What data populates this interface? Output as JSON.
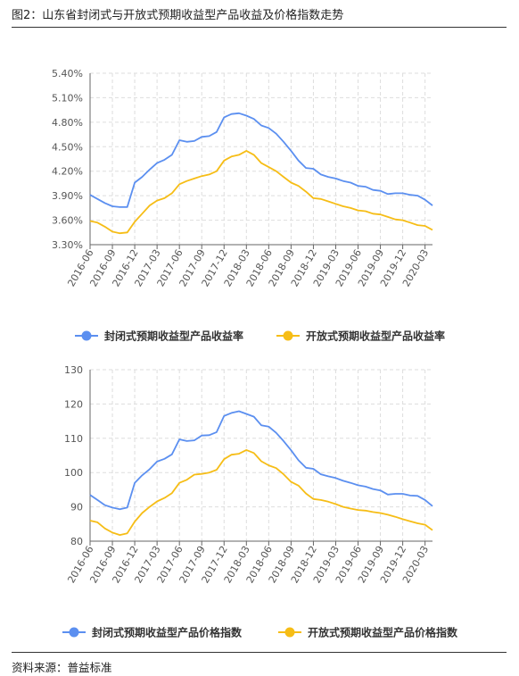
{
  "figure": {
    "title": "图2：山东省封闭式与开放式预期收益型产品收益及价格指数走势",
    "source": "资料来源：普益标准"
  },
  "colors": {
    "closed": "#5b8ff0",
    "open": "#f6bd16",
    "grid": "#dddddd",
    "axis": "#666666"
  },
  "chart_data": [
    {
      "type": "line",
      "x_ticks": [
        "2016-06",
        "2016-09",
        "2016-12",
        "2017-03",
        "2017-06",
        "2017-09",
        "2017-12",
        "2018-03",
        "2018-06",
        "2018-09",
        "2018-12",
        "2019-03",
        "2019-06",
        "2019-09",
        "2019-12",
        "2020-03"
      ],
      "x": [
        "2016-06",
        "2016-07",
        "2016-08",
        "2016-09",
        "2016-10",
        "2016-11",
        "2016-12",
        "2017-01",
        "2017-02",
        "2017-03",
        "2017-04",
        "2017-05",
        "2017-06",
        "2017-07",
        "2017-08",
        "2017-09",
        "2017-10",
        "2017-11",
        "2017-12",
        "2018-01",
        "2018-02",
        "2018-03",
        "2018-04",
        "2018-05",
        "2018-06",
        "2018-07",
        "2018-08",
        "2018-09",
        "2018-10",
        "2018-11",
        "2018-12",
        "2019-01",
        "2019-02",
        "2019-03",
        "2019-04",
        "2019-05",
        "2019-06",
        "2019-07",
        "2019-08",
        "2019-09",
        "2019-10",
        "2019-11",
        "2019-12",
        "2020-01",
        "2020-02",
        "2020-03",
        "2020-04"
      ],
      "y_ticks": [
        "3.30%",
        "3.60%",
        "3.90%",
        "4.20%",
        "4.50%",
        "4.80%",
        "5.10%",
        "5.40%"
      ],
      "ylim": [
        3.3,
        5.4
      ],
      "series": [
        {
          "name": "封闭式预期收益型产品收益率",
          "color_key": "closed",
          "values": [
            3.91,
            3.86,
            3.81,
            3.77,
            3.76,
            3.76,
            4.06,
            4.13,
            4.22,
            4.3,
            4.34,
            4.4,
            4.58,
            4.56,
            4.57,
            4.62,
            4.63,
            4.68,
            4.86,
            4.9,
            4.91,
            4.88,
            4.84,
            4.76,
            4.73,
            4.66,
            4.56,
            4.45,
            4.33,
            4.24,
            4.23,
            4.16,
            4.13,
            4.11,
            4.08,
            4.06,
            4.02,
            4.01,
            3.97,
            3.96,
            3.92,
            3.93,
            3.93,
            3.91,
            3.9,
            3.85,
            3.78
          ]
        },
        {
          "name": "开放式预期收益型产品收益率",
          "color_key": "open",
          "values": [
            3.59,
            3.57,
            3.52,
            3.46,
            3.44,
            3.45,
            3.58,
            3.68,
            3.78,
            3.84,
            3.87,
            3.93,
            4.04,
            4.08,
            4.11,
            4.14,
            4.16,
            4.2,
            4.33,
            4.38,
            4.4,
            4.45,
            4.4,
            4.3,
            4.25,
            4.2,
            4.13,
            4.06,
            4.02,
            3.95,
            3.87,
            3.86,
            3.83,
            3.8,
            3.77,
            3.75,
            3.72,
            3.71,
            3.68,
            3.67,
            3.64,
            3.61,
            3.6,
            3.57,
            3.54,
            3.53,
            3.48
          ]
        }
      ]
    },
    {
      "type": "line",
      "x_ticks": [
        "2016-06",
        "2016-09",
        "2016-12",
        "2017-03",
        "2017-06",
        "2017-09",
        "2017-12",
        "2018-03",
        "2018-06",
        "2018-09",
        "2018-12",
        "2019-03",
        "2019-06",
        "2019-09",
        "2019-12",
        "2020-03"
      ],
      "x": [
        "2016-06",
        "2016-07",
        "2016-08",
        "2016-09",
        "2016-10",
        "2016-11",
        "2016-12",
        "2017-01",
        "2017-02",
        "2017-03",
        "2017-04",
        "2017-05",
        "2017-06",
        "2017-07",
        "2017-08",
        "2017-09",
        "2017-10",
        "2017-11",
        "2017-12",
        "2018-01",
        "2018-02",
        "2018-03",
        "2018-04",
        "2018-05",
        "2018-06",
        "2018-07",
        "2018-08",
        "2018-09",
        "2018-10",
        "2018-11",
        "2018-12",
        "2019-01",
        "2019-02",
        "2019-03",
        "2019-04",
        "2019-05",
        "2019-06",
        "2019-07",
        "2019-08",
        "2019-09",
        "2019-10",
        "2019-11",
        "2019-12",
        "2020-01",
        "2020-02",
        "2020-03",
        "2020-04"
      ],
      "y_ticks": [
        "80",
        "90",
        "100",
        "110",
        "120",
        "130"
      ],
      "ylim": [
        80,
        130
      ],
      "series": [
        {
          "name": "封闭式预期收益型产品价格指数",
          "color_key": "closed",
          "values": [
            93.5,
            92.0,
            90.5,
            89.8,
            89.3,
            89.8,
            97.0,
            99.2,
            101.0,
            103.2,
            104.0,
            105.3,
            109.7,
            109.2,
            109.4,
            110.8,
            110.9,
            111.8,
            116.5,
            117.4,
            117.9,
            117.1,
            116.3,
            113.8,
            113.4,
            111.6,
            109.2,
            106.5,
            103.6,
            101.4,
            101.1,
            99.5,
            98.9,
            98.4,
            97.6,
            97.0,
            96.3,
            95.9,
            95.2,
            94.8,
            93.6,
            93.8,
            93.8,
            93.3,
            93.2,
            92.0,
            90.2
          ]
        },
        {
          "name": "开放式预期收益型产品价格指数",
          "color_key": "open",
          "values": [
            86.0,
            85.5,
            83.7,
            82.5,
            81.8,
            82.3,
            85.7,
            88.2,
            90.0,
            91.6,
            92.6,
            94.0,
            97.0,
            97.9,
            99.4,
            99.6,
            100.0,
            100.8,
            103.9,
            105.2,
            105.5,
            106.6,
            105.7,
            103.3,
            102.1,
            101.3,
            99.5,
            97.3,
            96.2,
            93.9,
            92.3,
            92.0,
            91.5,
            90.8,
            90.0,
            89.5,
            89.1,
            88.9,
            88.5,
            88.2,
            87.7,
            87.1,
            86.4,
            85.8,
            85.2,
            84.8,
            83.2
          ]
        }
      ]
    }
  ]
}
